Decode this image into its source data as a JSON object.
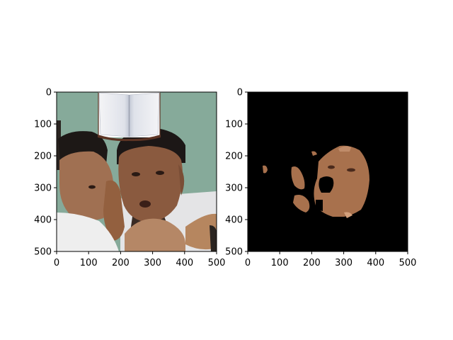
{
  "figure": {
    "panels": [
      {
        "id": "original",
        "image_description": "photo of two young men, one in front holding his hand near his cheek, open book icon overlaid at top",
        "x_ticks": [
          "0",
          "100",
          "200",
          "300",
          "400",
          "500"
        ],
        "y_ticks": [
          "0",
          "100",
          "200",
          "300",
          "400",
          "500"
        ],
        "x_range": [
          0,
          500
        ],
        "y_range": [
          0,
          500
        ]
      },
      {
        "id": "skin-mask",
        "image_description": "black background with segmented skin regions of the right face and small patches",
        "x_ticks": [
          "0",
          "100",
          "200",
          "300",
          "400",
          "500"
        ],
        "y_ticks": [
          "0",
          "100",
          "200",
          "300",
          "400",
          "500"
        ],
        "x_range": [
          0,
          500
        ],
        "y_range": [
          0,
          500
        ]
      }
    ],
    "colors": {
      "background_teal": "#86aa9a",
      "skin": "#a8714d",
      "mask_bg": "#000000"
    }
  }
}
